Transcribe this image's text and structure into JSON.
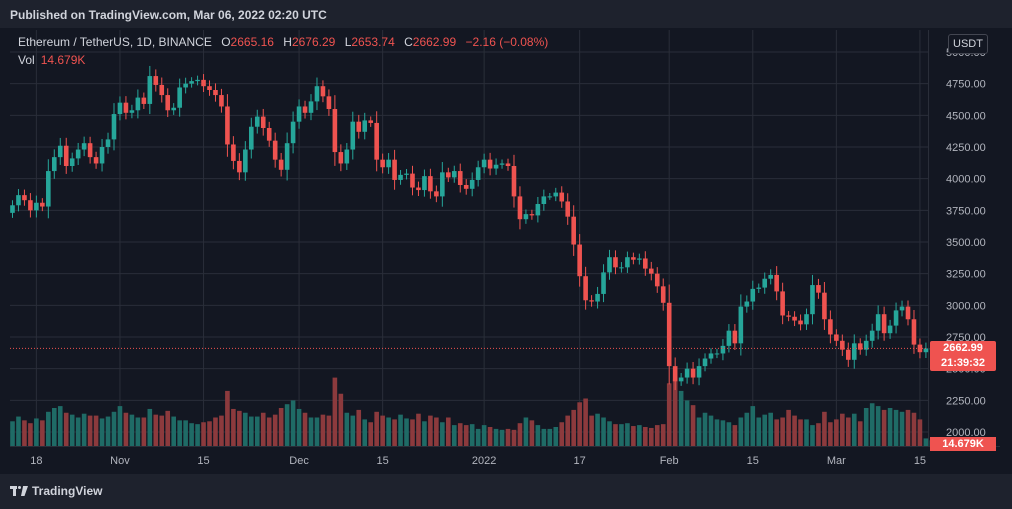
{
  "header": {
    "published": "Published on TradingView.com, Mar 06, 2022 02:20 UTC"
  },
  "legend": {
    "symbol": "Ethereum / TetherUS, 1D, BINANCE",
    "open_label": "O",
    "open": "2665.16",
    "high_label": "H",
    "high": "2676.29",
    "low_label": "L",
    "low": "2653.74",
    "close_label": "C",
    "close": "2662.99",
    "change": "−2.16 (−0.08%)",
    "vol_label": "Vol",
    "vol": "14.679K"
  },
  "price_axis": {
    "currency": "USDT",
    "last_price": "2662.99",
    "countdown": "21:39:32",
    "vol_tag": "14.679K"
  },
  "footer": {
    "brand": "TradingView"
  },
  "colors": {
    "up": "#26a69a",
    "down": "#ef5350",
    "up_vol": "#1f6b66",
    "down_vol": "#8c3a3d",
    "grid": "#2a2e39",
    "text": "#b2b5be"
  },
  "chart_data": {
    "type": "candlestick",
    "title": "Ethereum / TetherUS, 1D, BINANCE",
    "y_axis": {
      "ticks": [
        2000,
        2250,
        2500,
        2750,
        3000,
        3250,
        3500,
        3750,
        4000,
        4250,
        4500,
        4750,
        5000
      ],
      "tick_labels": [
        "2000.00",
        "2250.00",
        "2500.00",
        "2750.00",
        "3000.00",
        "3250.00",
        "3500.00",
        "3750.00",
        "4000.00",
        "4250.00",
        "4500.00",
        "4750.00",
        "5000.00"
      ],
      "ylim": [
        1925,
        5030
      ]
    },
    "x_axis": {
      "ticks": [
        {
          "label": "18",
          "date": "2021-10-18"
        },
        {
          "label": "Nov",
          "date": "2021-11-01"
        },
        {
          "label": "15",
          "date": "2021-11-15"
        },
        {
          "label": "Dec",
          "date": "2021-12-01"
        },
        {
          "label": "15",
          "date": "2021-12-15"
        },
        {
          "label": "2022",
          "date": "2022-01-01"
        },
        {
          "label": "17",
          "date": "2022-01-17"
        },
        {
          "label": "Feb",
          "date": "2022-02-01"
        },
        {
          "label": "15",
          "date": "2022-02-15"
        },
        {
          "label": "Mar",
          "date": "2022-03-01"
        },
        {
          "label": "15",
          "date": "2022-03-15"
        }
      ]
    },
    "start_date": "2021-10-14",
    "closes": [
      3790,
      3870,
      3830,
      3750,
      3810,
      3780,
      4060,
      4170,
      4260,
      4100,
      4160,
      4230,
      4280,
      4170,
      4120,
      4250,
      4310,
      4510,
      4600,
      4520,
      4540,
      4640,
      4590,
      4810,
      4740,
      4660,
      4540,
      4560,
      4720,
      4750,
      4770,
      4780,
      4730,
      4700,
      4660,
      4570,
      4270,
      4140,
      4050,
      4230,
      4410,
      4490,
      4400,
      4300,
      4150,
      4070,
      4280,
      4450,
      4570,
      4520,
      4610,
      4730,
      4650,
      4550,
      4210,
      4120,
      4230,
      4450,
      4370,
      4460,
      4440,
      4150,
      4090,
      4150,
      3990,
      4030,
      4040,
      3930,
      3910,
      4020,
      3900,
      3860,
      4050,
      4010,
      4060,
      3950,
      3920,
      3990,
      4090,
      4150,
      4080,
      4110,
      4120,
      4100,
      3860,
      3680,
      3720,
      3710,
      3800,
      3860,
      3860,
      3890,
      3820,
      3700,
      3480,
      3230,
      3040,
      3030,
      3090,
      3260,
      3380,
      3300,
      3300,
      3380,
      3360,
      3370,
      3290,
      3250,
      3150,
      3020,
      2520,
      2400,
      2430,
      2500,
      2430,
      2520,
      2580,
      2620,
      2620,
      2680,
      2800,
      2700,
      2990,
      3030,
      3130,
      3140,
      3210,
      3240,
      3110,
      2920,
      2910,
      2880,
      2850,
      2930,
      3160,
      3100,
      2890,
      2770,
      2720,
      2650,
      2570,
      2700,
      2650,
      2720,
      2800,
      2930,
      2780,
      2840,
      2960,
      2990,
      2890,
      2690,
      2630,
      2660,
      2660
    ],
    "volumes": [
      0.26,
      0.31,
      0.27,
      0.24,
      0.29,
      0.27,
      0.36,
      0.4,
      0.42,
      0.35,
      0.33,
      0.3,
      0.34,
      0.32,
      0.32,
      0.29,
      0.31,
      0.36,
      0.42,
      0.35,
      0.33,
      0.3,
      0.3,
      0.39,
      0.33,
      0.32,
      0.37,
      0.31,
      0.27,
      0.27,
      0.24,
      0.23,
      0.25,
      0.26,
      0.3,
      0.32,
      0.58,
      0.39,
      0.37,
      0.35,
      0.31,
      0.31,
      0.35,
      0.3,
      0.33,
      0.4,
      0.44,
      0.48,
      0.39,
      0.35,
      0.3,
      0.3,
      0.33,
      0.32,
      0.72,
      0.55,
      0.35,
      0.32,
      0.38,
      0.28,
      0.25,
      0.36,
      0.32,
      0.3,
      0.28,
      0.33,
      0.29,
      0.28,
      0.34,
      0.26,
      0.32,
      0.3,
      0.25,
      0.3,
      0.22,
      0.24,
      0.22,
      0.23,
      0.18,
      0.22,
      0.2,
      0.18,
      0.17,
      0.18,
      0.17,
      0.24,
      0.3,
      0.27,
      0.22,
      0.18,
      0.18,
      0.2,
      0.25,
      0.32,
      0.38,
      0.46,
      0.5,
      0.32,
      0.34,
      0.3,
      0.26,
      0.23,
      0.23,
      0.24,
      0.21,
      0.22,
      0.2,
      0.19,
      0.22,
      0.23,
      0.66,
      0.7,
      0.58,
      0.48,
      0.43,
      0.3,
      0.35,
      0.32,
      0.28,
      0.27,
      0.25,
      0.22,
      0.3,
      0.35,
      0.42,
      0.3,
      0.33,
      0.35,
      0.28,
      0.3,
      0.38,
      0.32,
      0.28,
      0.28,
      0.22,
      0.24,
      0.36,
      0.25,
      0.28,
      0.34,
      0.3,
      0.34,
      0.26,
      0.4,
      0.45,
      0.42,
      0.38,
      0.4,
      0.38,
      0.36,
      0.38,
      0.35,
      0.28,
      0.08,
      0.06
    ]
  }
}
